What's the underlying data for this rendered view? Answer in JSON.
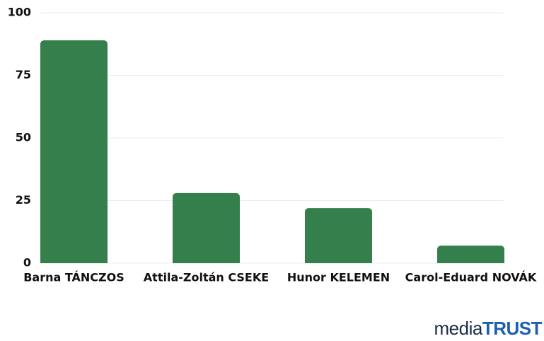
{
  "chart_data": {
    "type": "bar",
    "categories": [
      "Barna TÁNCZOS",
      "Attila-Zoltán CSEKE",
      "Hunor KELEMEN",
      "Carol-Eduard NOVÁK"
    ],
    "values": [
      89,
      28,
      22,
      7
    ],
    "color": "#357f4d",
    "ylim": [
      0,
      100
    ],
    "yticks": [
      0,
      25,
      50,
      75,
      100
    ],
    "grid": true
  },
  "logo": [
    "media",
    "TRUST"
  ]
}
